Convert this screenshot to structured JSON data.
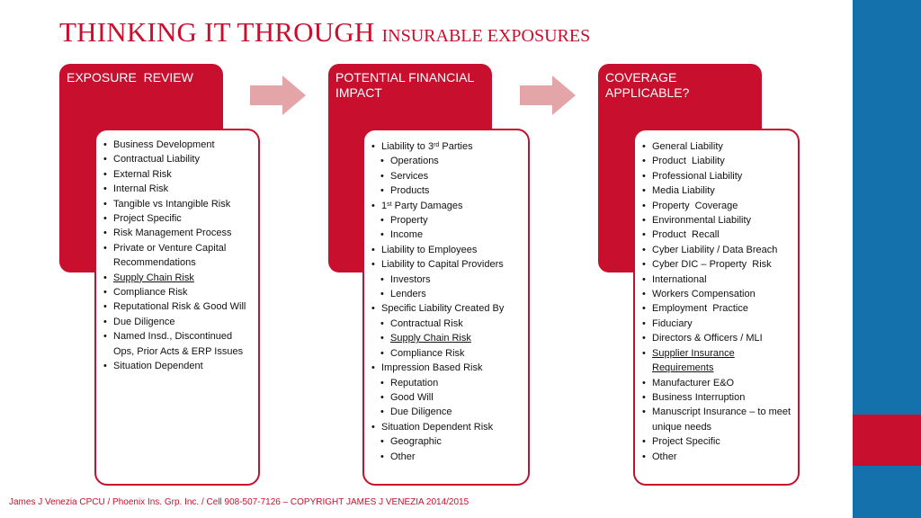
{
  "title": {
    "main": "THINKING IT THROUGH",
    "sub": "INSURABLE EXPOSURES"
  },
  "colors": {
    "accent_red": "#c8102e",
    "side_blue": "#1571ac",
    "arrow_pink": "#e4a5a8"
  },
  "icons": {
    "arrow": "right-arrow-icon"
  },
  "columns": [
    {
      "header": "EXPOSURE  REVIEW",
      "items": [
        {
          "text": "Business Development"
        },
        {
          "text": "Contractual Liability"
        },
        {
          "text": "External Risk"
        },
        {
          "text": "Internal Risk"
        },
        {
          "text": "Tangible vs Intangible Risk"
        },
        {
          "text": "Project Specific"
        },
        {
          "text": "Risk Management Process"
        },
        {
          "text": "Private or Venture Capital Recommendations"
        },
        {
          "text": "Supply Chain Risk"
        },
        {
          "text": "Compliance Risk"
        },
        {
          "text": "Reputational Risk & Good Will"
        },
        {
          "text": "Due Diligence"
        },
        {
          "text": "Named Insd., Discontinued Ops, Prior Acts & ERP Issues"
        },
        {
          "text": "Situation Dependent"
        }
      ]
    },
    {
      "header": "POTENTIAL FINANCIAL IMPACT",
      "items": [
        {
          "pre": "Liability to 3",
          "sup": "rd",
          "post": " Parties"
        },
        {
          "text": "Operations"
        },
        {
          "text": "Services"
        },
        {
          "text": "Products"
        },
        {
          "pre": "1",
          "sup": "st",
          "post": " Party Damages"
        },
        {
          "text": "Property"
        },
        {
          "text": "Income"
        },
        {
          "text": "Liability to Employees"
        },
        {
          "text": "Liability to Capital Providers"
        },
        {
          "text": "Investors"
        },
        {
          "text": "Lenders"
        },
        {
          "text": "Specific Liability Created By"
        },
        {
          "text": "Contractual Risk"
        },
        {
          "text": "Supply Chain Risk"
        },
        {
          "text": "Compliance Risk"
        },
        {
          "text": "Impression Based Risk"
        },
        {
          "text": "Reputation"
        },
        {
          "text": "Good Will"
        },
        {
          "text": "Due Diligence"
        },
        {
          "text": "Situation Dependent Risk"
        },
        {
          "text": "Geographic"
        },
        {
          "text": "Other"
        }
      ]
    },
    {
      "header": "COVERAGE APPLICABLE?",
      "items": [
        {
          "text": "General Liability"
        },
        {
          "text": "Product  Liability"
        },
        {
          "text": "Professional Liability"
        },
        {
          "text": "Media Liability"
        },
        {
          "text": "Property  Coverage"
        },
        {
          "text": "Environmental Liability"
        },
        {
          "text": "Product  Recall"
        },
        {
          "text": "Cyber Liability / Data Breach"
        },
        {
          "text": "Cyber DIC – Property  Risk"
        },
        {
          "text": "International"
        },
        {
          "text": "Workers Compensation"
        },
        {
          "text": "Employment  Practice"
        },
        {
          "text": "Fiduciary"
        },
        {
          "text": "Directors & Officers / MLI"
        },
        {
          "text": "Supplier Insurance Requirements"
        },
        {
          "text": "Manufacturer E&O"
        },
        {
          "text": "Business Interruption"
        },
        {
          "text": "Manuscript Insurance – to meet unique needs"
        },
        {
          "text": "Project Specific"
        },
        {
          "text": "Other"
        }
      ]
    }
  ],
  "footer": "James J Venezia CPCU / Phoenix Ins. Grp. Inc. / Cell 908-507-7126  – COPYRIGHT JAMES J VENEZIA 2014/2015"
}
